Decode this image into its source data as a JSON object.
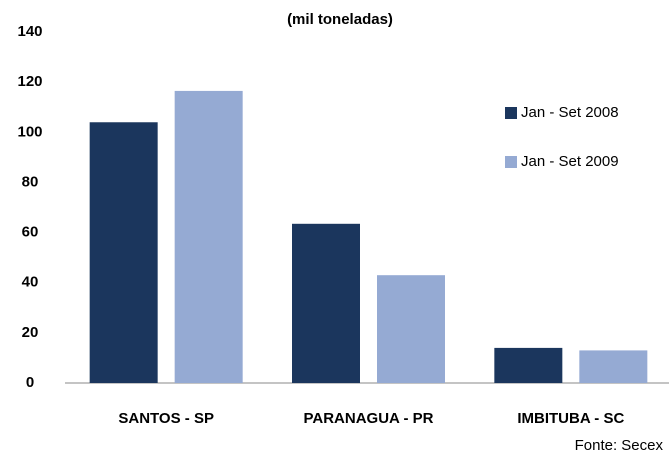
{
  "chart_data": {
    "type": "bar",
    "subtitle": "(mil toneladas)",
    "categories": [
      "SANTOS - SP",
      "PARANAGUA - PR",
      "IMBITUBA - SC"
    ],
    "series": [
      {
        "name": "Jan - Set 2008",
        "color": "#1b365d",
        "values": [
          104,
          63.5,
          14
        ]
      },
      {
        "name": "Jan - Set 2009",
        "color": "#95aad3",
        "values": [
          116.5,
          43,
          13
        ]
      }
    ],
    "ylim": [
      0,
      140
    ],
    "yticks": [
      0,
      20,
      40,
      60,
      80,
      100,
      120,
      140
    ],
    "grid": false,
    "legend": "right",
    "source": "Fonte: Secex"
  }
}
